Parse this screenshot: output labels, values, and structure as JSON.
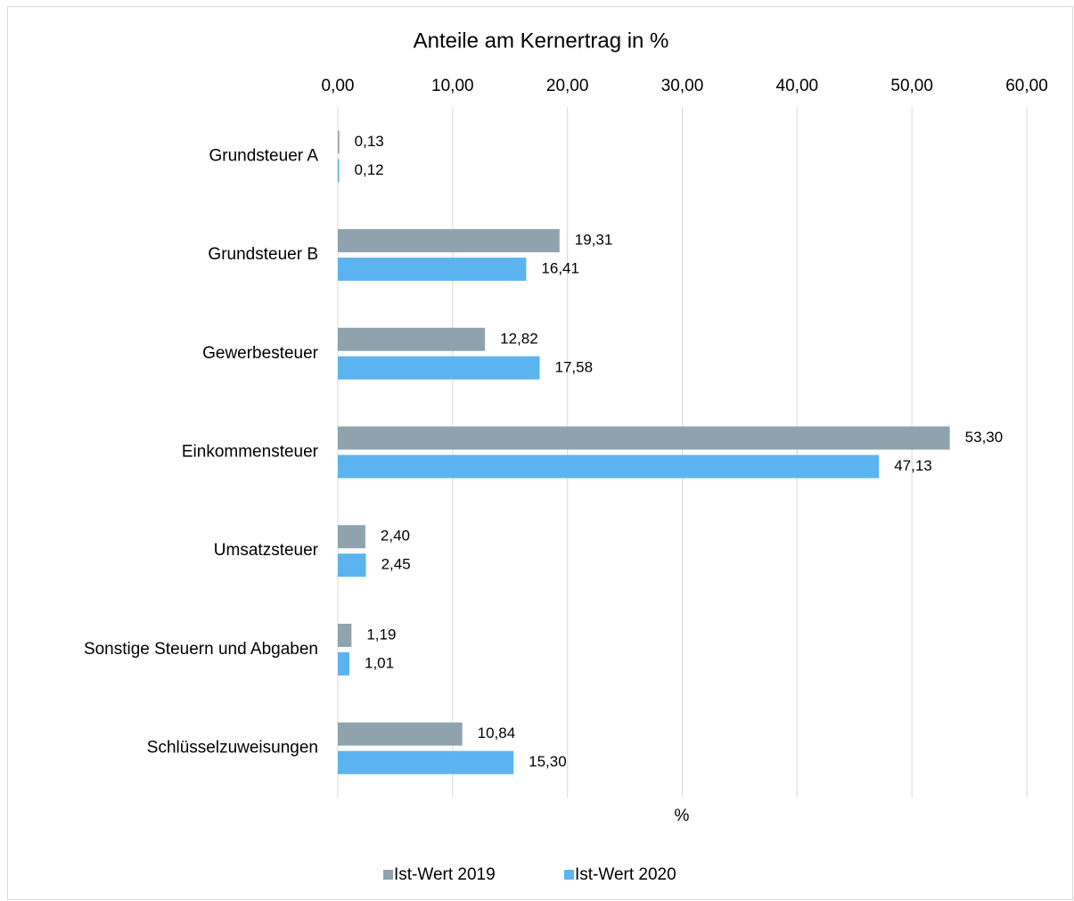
{
  "chart_data": {
    "type": "hbar",
    "title": "Anteile am Kernertrag in %",
    "x_label": "%",
    "categories": [
      "Grundsteuer A",
      "Grundsteuer B",
      "Gewerbesteuer",
      "Einkommensteuer",
      "Umsatzsteuer",
      "Sonstige Steuern und Abgaben",
      "Schlüsselzuweisungen"
    ],
    "series": [
      {
        "name": "Ist-Wert 2019",
        "color": "#8fa3ae",
        "values": [
          0.13,
          19.31,
          12.82,
          53.3,
          2.4,
          1.19,
          10.84
        ],
        "value_labels": [
          "0,13",
          "19,31",
          "12,82",
          "53,30",
          "2,40",
          "1,19",
          "10,84"
        ]
      },
      {
        "name": "Ist-Wert 2020",
        "color": "#5bb4f0",
        "values": [
          0.12,
          16.41,
          17.58,
          47.13,
          2.45,
          1.01,
          15.3
        ],
        "value_labels": [
          "0,12",
          "16,41",
          "17,58",
          "47,13",
          "2,45",
          "1,01",
          "15,30"
        ]
      }
    ],
    "xlim": [
      0,
      60
    ],
    "xticks": [
      {
        "value": 0,
        "label": "0,00"
      },
      {
        "value": 10,
        "label": "10,00"
      },
      {
        "value": 20,
        "label": "20,00"
      },
      {
        "value": 30,
        "label": "30,00"
      },
      {
        "value": 40,
        "label": "40,00"
      },
      {
        "value": 50,
        "label": "50,00"
      },
      {
        "value": 60,
        "label": "60,00"
      }
    ],
    "grid": true,
    "legend": "bottom"
  }
}
